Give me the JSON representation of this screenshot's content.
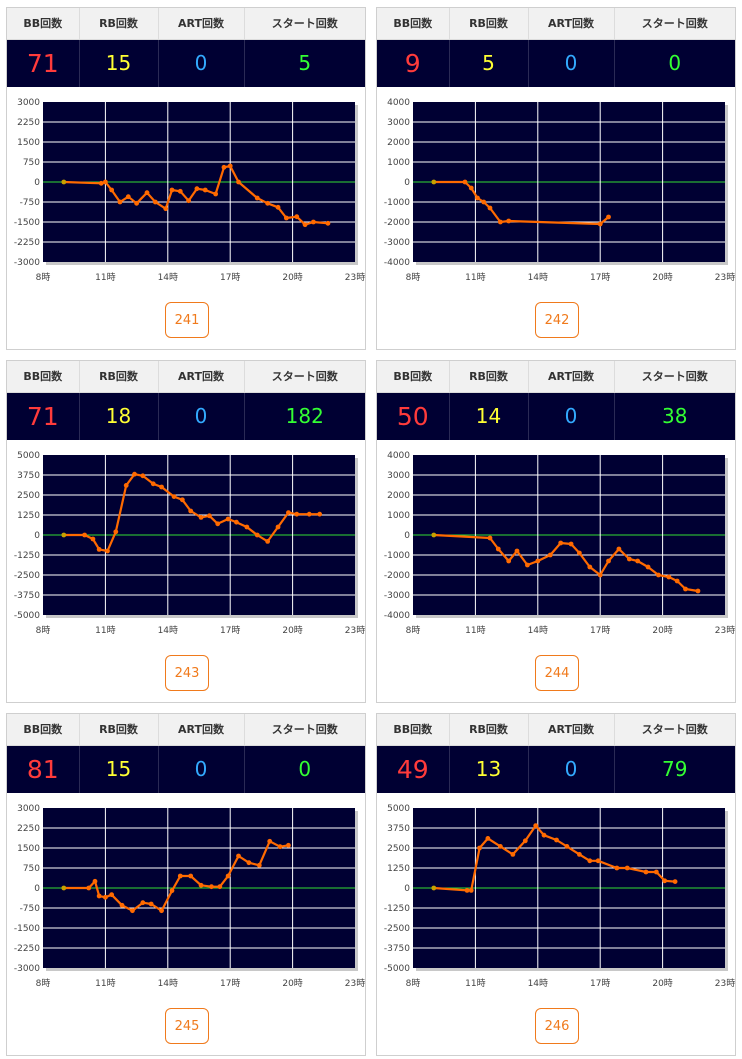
{
  "headers": {
    "bb": "BB回数",
    "rb": "RB回数",
    "art": "ART回数",
    "start": "スタート回数"
  },
  "machines": [
    {
      "number": "241",
      "bb": "71",
      "rb": "15",
      "art": "0",
      "start": "5",
      "chart_data": {
        "type": "line",
        "x_ticks": [
          "8時",
          "11時",
          "14時",
          "17時",
          "20時",
          "23時"
        ],
        "y_ticks": [
          "3000",
          "2250",
          "1500",
          "750",
          "0",
          "-750",
          "-1500",
          "-2250",
          "-3000"
        ],
        "ylim": [
          -3000,
          3000
        ],
        "x": [
          9.0,
          10.8,
          11.0,
          11.3,
          11.7,
          12.1,
          12.5,
          13.0,
          13.4,
          13.9,
          14.2,
          14.6,
          15.0,
          15.4,
          15.8,
          16.3,
          16.7,
          17.0,
          17.4,
          18.3,
          18.8,
          19.3,
          19.7,
          20.2,
          20.6,
          21.0,
          21.7
        ],
        "y": [
          0,
          -50,
          0,
          -300,
          -750,
          -550,
          -800,
          -400,
          -750,
          -1000,
          -300,
          -350,
          -700,
          -250,
          -300,
          -450,
          550,
          600,
          0,
          -600,
          -800,
          -950,
          -1350,
          -1300,
          -1600,
          -1500,
          -1550
        ]
      }
    },
    {
      "number": "242",
      "bb": "9",
      "rb": "5",
      "art": "0",
      "start": "0",
      "chart_data": {
        "type": "line",
        "x_ticks": [
          "8時",
          "11時",
          "14時",
          "17時",
          "20時",
          "23時"
        ],
        "y_ticks": [
          "4000",
          "3000",
          "2000",
          "1000",
          "0",
          "-1000",
          "-2000",
          "-3000",
          "-4000"
        ],
        "ylim": [
          -4000,
          4000
        ],
        "x": [
          9.0,
          10.5,
          10.8,
          11.1,
          11.4,
          11.7,
          12.2,
          12.6,
          17.0,
          17.4
        ],
        "y": [
          0,
          0,
          -300,
          -800,
          -1000,
          -1300,
          -2000,
          -1950,
          -2100,
          -1750
        ]
      }
    },
    {
      "number": "243",
      "bb": "71",
      "rb": "18",
      "art": "0",
      "start": "182",
      "chart_data": {
        "type": "line",
        "x_ticks": [
          "8時",
          "11時",
          "14時",
          "17時",
          "20時",
          "23時"
        ],
        "y_ticks": [
          "5000",
          "3750",
          "2500",
          "1250",
          "0",
          "-1250",
          "-2500",
          "-3750",
          "-5000"
        ],
        "ylim": [
          -5000,
          5000
        ],
        "x": [
          9.0,
          10.0,
          10.4,
          10.7,
          11.1,
          11.5,
          12.0,
          12.4,
          12.8,
          13.3,
          13.7,
          14.3,
          14.7,
          15.1,
          15.6,
          16.0,
          16.4,
          16.9,
          17.3,
          17.8,
          18.3,
          18.8,
          19.3,
          19.8,
          20.2,
          20.8,
          21.3
        ],
        "y": [
          0,
          0,
          -250,
          -900,
          -1000,
          200,
          3100,
          3800,
          3700,
          3200,
          3000,
          2400,
          2200,
          1500,
          1100,
          1200,
          700,
          1000,
          800,
          500,
          0,
          -400,
          500,
          1400,
          1300,
          1300,
          1300
        ]
      }
    },
    {
      "number": "244",
      "bb": "50",
      "rb": "14",
      "art": "0",
      "start": "38",
      "chart_data": {
        "type": "line",
        "x_ticks": [
          "8時",
          "11時",
          "14時",
          "17時",
          "20時",
          "23時"
        ],
        "y_ticks": [
          "4000",
          "3000",
          "2000",
          "1000",
          "0",
          "-1000",
          "-2000",
          "-3000",
          "-4000"
        ],
        "ylim": [
          -4000,
          4000
        ],
        "x": [
          9.0,
          11.7,
          12.1,
          12.6,
          13.0,
          13.5,
          14.0,
          14.6,
          15.1,
          15.6,
          16.0,
          16.5,
          17.0,
          17.4,
          17.9,
          18.4,
          18.8,
          19.3,
          19.8,
          20.3,
          20.7,
          21.1,
          21.7
        ],
        "y": [
          0,
          -150,
          -700,
          -1300,
          -800,
          -1500,
          -1300,
          -1000,
          -400,
          -450,
          -900,
          -1600,
          -2000,
          -1300,
          -700,
          -1200,
          -1300,
          -1600,
          -2000,
          -2100,
          -2300,
          -2700,
          -2800
        ]
      }
    },
    {
      "number": "245",
      "bb": "81",
      "rb": "15",
      "art": "0",
      "start": "0",
      "chart_data": {
        "type": "line",
        "x_ticks": [
          "8時",
          "11時",
          "14時",
          "17時",
          "20時",
          "23時"
        ],
        "y_ticks": [
          "3000",
          "2250",
          "1500",
          "750",
          "0",
          "-750",
          "-1500",
          "-2250",
          "-3000"
        ],
        "ylim": [
          -3000,
          3000
        ],
        "x": [
          9.0,
          10.2,
          10.5,
          10.7,
          11.0,
          11.3,
          11.8,
          12.3,
          12.8,
          13.2,
          13.7,
          14.2,
          14.6,
          15.1,
          15.6,
          16.1,
          16.5,
          16.9,
          17.4,
          17.9,
          18.4,
          18.9,
          19.4,
          19.8
        ],
        "y": [
          0,
          0,
          250,
          -300,
          -350,
          -250,
          -650,
          -850,
          -550,
          -600,
          -850,
          -100,
          450,
          450,
          100,
          50,
          50,
          450,
          1200,
          950,
          850,
          1750,
          1550,
          1600
        ]
      }
    },
    {
      "number": "246",
      "bb": "49",
      "rb": "13",
      "art": "0",
      "start": "79",
      "chart_data": {
        "type": "line",
        "x_ticks": [
          "8時",
          "11時",
          "14時",
          "17時",
          "20時",
          "23時"
        ],
        "y_ticks": [
          "5000",
          "3750",
          "2500",
          "1250",
          "0",
          "-1250",
          "-2500",
          "-3750",
          "-5000"
        ],
        "ylim": [
          -5000,
          5000
        ],
        "x": [
          9.0,
          10.6,
          10.8,
          11.2,
          11.6,
          12.2,
          12.8,
          13.4,
          13.9,
          14.3,
          14.9,
          15.4,
          16.0,
          16.5,
          16.9,
          17.8,
          18.3,
          19.2,
          19.7,
          20.1,
          20.6
        ],
        "y": [
          0,
          -150,
          -150,
          2500,
          3100,
          2600,
          2100,
          2950,
          3900,
          3300,
          3000,
          2600,
          2100,
          1700,
          1700,
          1250,
          1250,
          1000,
          1000,
          450,
          400
        ]
      }
    }
  ]
}
